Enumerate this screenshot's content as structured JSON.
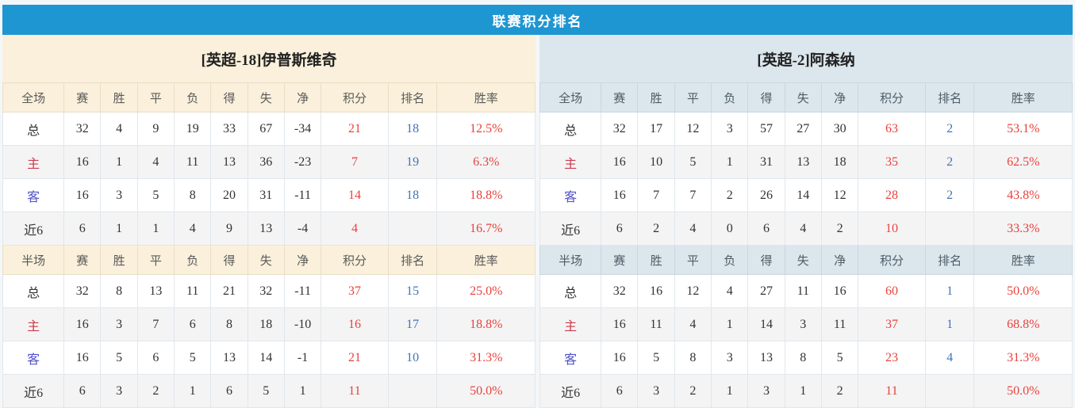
{
  "page": {
    "title": "联赛积分排名"
  },
  "columns": {
    "full_label": "全场",
    "half_label": "半场",
    "stats": [
      "赛",
      "胜",
      "平",
      "负",
      "得",
      "失",
      "净",
      "积分",
      "排名",
      "胜率"
    ]
  },
  "row_labels": [
    "总",
    "主",
    "客",
    "近6"
  ],
  "teams": [
    {
      "name": "[英超-18]伊普斯维奇",
      "full": [
        [
          "32",
          "4",
          "9",
          "19",
          "33",
          "67",
          "-34",
          "21",
          "18",
          "12.5%"
        ],
        [
          "16",
          "1",
          "4",
          "11",
          "13",
          "36",
          "-23",
          "7",
          "19",
          "6.3%"
        ],
        [
          "16",
          "3",
          "5",
          "8",
          "20",
          "31",
          "-11",
          "14",
          "18",
          "18.8%"
        ],
        [
          "6",
          "1",
          "1",
          "4",
          "9",
          "13",
          "-4",
          "4",
          "",
          "16.7%"
        ]
      ],
      "half": [
        [
          "32",
          "8",
          "13",
          "11",
          "21",
          "32",
          "-11",
          "37",
          "15",
          "25.0%"
        ],
        [
          "16",
          "3",
          "7",
          "6",
          "8",
          "18",
          "-10",
          "16",
          "17",
          "18.8%"
        ],
        [
          "16",
          "5",
          "6",
          "5",
          "13",
          "14",
          "-1",
          "21",
          "10",
          "31.3%"
        ],
        [
          "6",
          "3",
          "2",
          "1",
          "6",
          "5",
          "1",
          "11",
          "",
          "50.0%"
        ]
      ]
    },
    {
      "name": "[英超-2]阿森纳",
      "full": [
        [
          "32",
          "17",
          "12",
          "3",
          "57",
          "27",
          "30",
          "63",
          "2",
          "53.1%"
        ],
        [
          "16",
          "10",
          "5",
          "1",
          "31",
          "13",
          "18",
          "35",
          "2",
          "62.5%"
        ],
        [
          "16",
          "7",
          "7",
          "2",
          "26",
          "14",
          "12",
          "28",
          "2",
          "43.8%"
        ],
        [
          "6",
          "2",
          "4",
          "0",
          "6",
          "4",
          "2",
          "10",
          "",
          "33.3%"
        ]
      ],
      "half": [
        [
          "32",
          "16",
          "12",
          "4",
          "27",
          "11",
          "16",
          "60",
          "1",
          "50.0%"
        ],
        [
          "16",
          "11",
          "4",
          "1",
          "14",
          "3",
          "11",
          "37",
          "1",
          "68.8%"
        ],
        [
          "16",
          "5",
          "8",
          "3",
          "13",
          "8",
          "5",
          "23",
          "4",
          "31.3%"
        ],
        [
          "6",
          "3",
          "2",
          "1",
          "3",
          "1",
          "2",
          "11",
          "",
          "50.0%"
        ]
      ]
    }
  ],
  "colors": {
    "header_bar": "#1e96d2",
    "left_panel_bg": "#faf0db",
    "right_panel_bg": "#dce6ed",
    "value_red": "#e8423c",
    "rank_blue": "#4075b5",
    "home_red": "#cb3a4a",
    "away_blue": "#5252c6",
    "alt_row_bg": "#f4f4f5"
  }
}
